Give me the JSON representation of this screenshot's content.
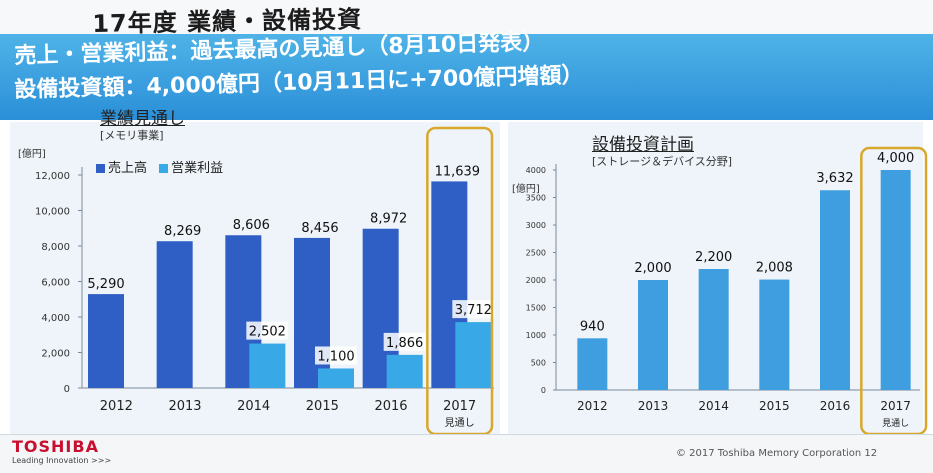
{
  "page": {
    "title": "17年度 業績・設備投資",
    "banner_line1": "売上・営業利益：過去最高の見通し（8月10日発表）",
    "banner_line2": "設備投資額：4,000億円（10月11日に+700億円増額）"
  },
  "footer": {
    "logo": "TOSHIBA",
    "tagline": "Leading Innovation >>>",
    "copyright": "© 2017 Toshiba Memory Corporation",
    "page_number": "12"
  },
  "colors": {
    "sales": "#2f5fc4",
    "profit": "#38a9e6",
    "capex": "#3e9ee0",
    "highlight": "#d8a82c"
  },
  "chart_data": [
    {
      "type": "bar",
      "title": "業績見通し",
      "subtitle": "[メモリ事業]",
      "ylabel": "[億円]",
      "categories": [
        "2012",
        "2013",
        "2014",
        "2015",
        "2016",
        "2017"
      ],
      "category_notes": [
        "",
        "",
        "",
        "",
        "",
        "見通し"
      ],
      "yticks": [
        0,
        2000,
        4000,
        6000,
        8000,
        10000,
        12000
      ],
      "ytick_labels": [
        "0",
        "2,000",
        "4,000",
        "6,000",
        "8,000",
        "10,000",
        "12,000"
      ],
      "ylim": [
        0,
        12000
      ],
      "series": [
        {
          "name": "売上高",
          "values": [
            5290,
            8269,
            8606,
            8456,
            8972,
            11639
          ],
          "labels": [
            "5,290",
            "8,269",
            "8,606",
            "8,456",
            "8,972",
            "11,639"
          ]
        },
        {
          "name": "営業利益",
          "values": [
            null,
            null,
            2502,
            1100,
            1866,
            3712
          ],
          "labels": [
            "",
            "",
            "2,502",
            "1,100",
            "1,866",
            "3,712"
          ]
        }
      ],
      "highlight_category": "2017",
      "legend": "top-left"
    },
    {
      "type": "bar",
      "title": "設備投資計画",
      "subtitle": "[ストレージ＆デバイス分野]",
      "ylabel": "[億円]",
      "categories": [
        "2012",
        "2013",
        "2014",
        "2015",
        "2016",
        "2017"
      ],
      "category_notes": [
        "",
        "",
        "",
        "",
        "",
        "見通し"
      ],
      "yticks": [
        0,
        500,
        1000,
        1500,
        2000,
        2500,
        3000,
        3500,
        4000
      ],
      "ytick_labels": [
        "0",
        "500",
        "1000",
        "1500",
        "2000",
        "2500",
        "3000",
        "3500",
        "4000"
      ],
      "ylim": [
        0,
        4000
      ],
      "values": [
        940,
        2000,
        2200,
        2008,
        3632,
        4000
      ],
      "labels": [
        "940",
        "2,000",
        "2,200",
        "2,008",
        "3,632",
        "4,000"
      ],
      "highlight_category": "2017"
    }
  ]
}
